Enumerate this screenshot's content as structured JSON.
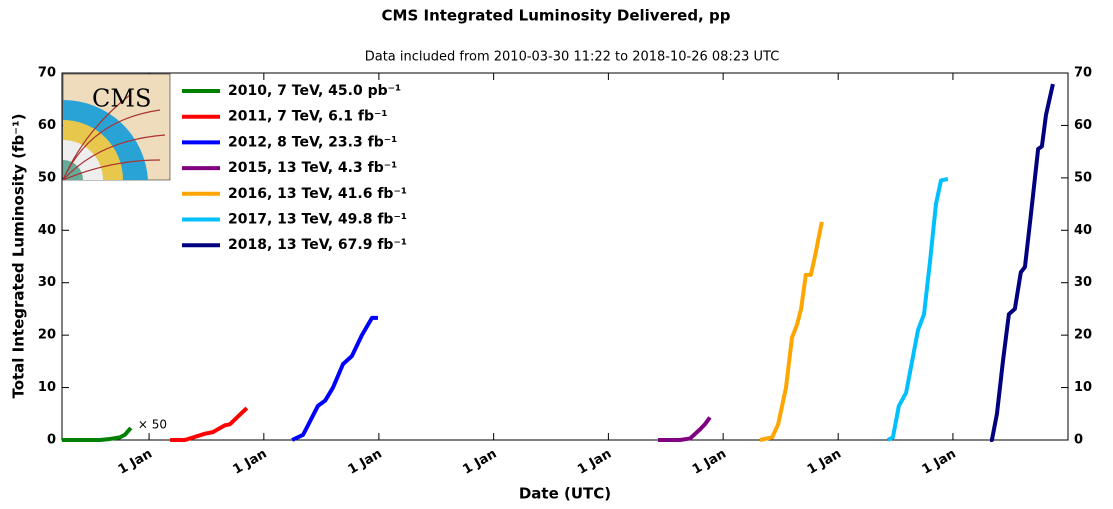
{
  "chart_data": {
    "type": "line",
    "title": "CMS Integrated Luminosity Delivered, pp",
    "subtitle": "Data included from 2010-03-30 11:22 to 2018-10-26 08:23 UTC",
    "x_label": "Date (UTC)",
    "y_label": "Total Integrated Luminosity (fb⁻¹)",
    "annotation": "× 50",
    "logo_text": "CMS",
    "xlim": [
      0,
      3200
    ],
    "xticks": [
      {
        "value": 277,
        "label": "1 Jan"
      },
      {
        "value": 642,
        "label": "1 Jan"
      },
      {
        "value": 1008,
        "label": "1 Jan"
      },
      {
        "value": 1373,
        "label": "1 Jan"
      },
      {
        "value": 1738,
        "label": "1 Jan"
      },
      {
        "value": 2103,
        "label": "1 Jan"
      },
      {
        "value": 2469,
        "label": "1 Jan"
      },
      {
        "value": 2834,
        "label": "1 Jan"
      }
    ],
    "ylim": [
      0,
      70
    ],
    "yticks": [
      0,
      10,
      20,
      30,
      40,
      50,
      60,
      70
    ],
    "y2lim": [
      0,
      70
    ],
    "y2ticks": [
      0,
      10,
      20,
      30,
      40,
      50,
      60,
      70
    ],
    "legend": "upper left",
    "series": [
      {
        "name": "2010, 7 TeV, 45.0 pb⁻¹",
        "color": "#008000",
        "x": [
          0,
          121,
          153,
          184,
          200,
          219
        ],
        "values": [
          0,
          0,
          0.2,
          0.5,
          1.0,
          2.3
        ]
      },
      {
        "name": "2011, 7 TeV, 6.1 fb⁻¹",
        "color": "#ff0000",
        "x": [
          344,
          391,
          455,
          480,
          518,
          534,
          560,
          588
        ],
        "values": [
          0,
          0,
          1.2,
          1.5,
          2.8,
          3.0,
          4.5,
          6.1
        ]
      },
      {
        "name": "2012, 8 TeV, 23.3 fb⁻¹",
        "color": "#0000ff",
        "x": [
          732,
          767,
          814,
          837,
          862,
          894,
          922,
          954,
          986,
          1005
        ],
        "values": [
          0,
          1,
          6.5,
          7.5,
          10,
          14.5,
          16,
          20,
          23.3,
          23.3
        ]
      },
      {
        "name": "2015, 13 TeV, 4.3 fb⁻¹",
        "color": "#800080",
        "x": [
          1896,
          1966,
          1998,
          2029,
          2045,
          2061
        ],
        "values": [
          0,
          0,
          0.3,
          2,
          3,
          4.3
        ]
      },
      {
        "name": "2016, 13 TeV, 41.6 fb⁻¹",
        "color": "#ffa500",
        "x": [
          2220,
          2259,
          2278,
          2303,
          2322,
          2338,
          2351,
          2366,
          2382,
          2395,
          2417
        ],
        "values": [
          0,
          0.5,
          3,
          10,
          19.5,
          22,
          25,
          31.5,
          31.5,
          35,
          41.6
        ]
      },
      {
        "name": "2017, 13 TeV, 49.8 fb⁻¹",
        "color": "#00bfff",
        "x": [
          2627,
          2643,
          2662,
          2685,
          2704,
          2723,
          2742,
          2761,
          2780,
          2796,
          2818
        ],
        "values": [
          0,
          0.5,
          6.5,
          9,
          15,
          21,
          24,
          34,
          45,
          49.5,
          49.8
        ]
      },
      {
        "name": "2018, 13 TeV, 67.9 fb⁻¹",
        "color": "#000080",
        "x": [
          2952,
          2958,
          2974,
          2993,
          3012,
          3031,
          3050,
          3063,
          3082,
          3105,
          3117,
          3130,
          3152
        ],
        "values": [
          0,
          0,
          5,
          15,
          24,
          25,
          32,
          33,
          43,
          55.5,
          56,
          62,
          67.9
        ]
      }
    ]
  }
}
